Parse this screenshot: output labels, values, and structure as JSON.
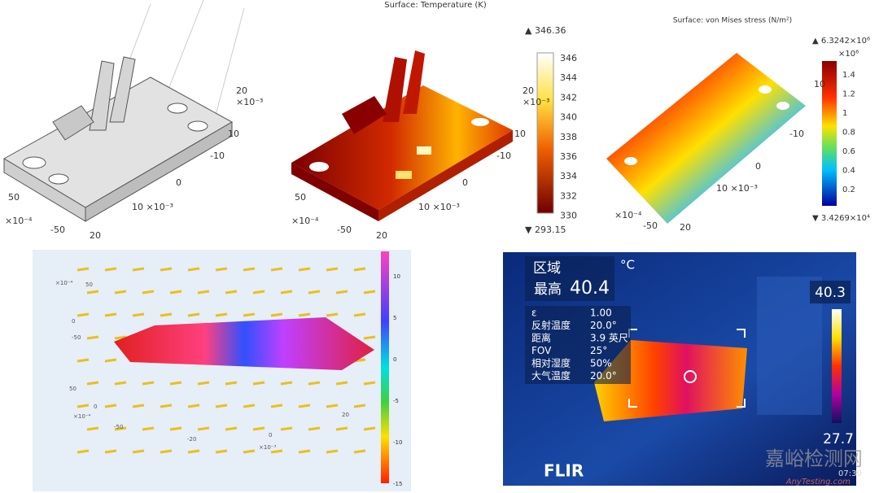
{
  "mesh_panel": {
    "axis_labels": [
      "20",
      "×10⁻³",
      "10",
      "-10",
      "0",
      "50",
      "×10⁻⁴",
      "10 ×10⁻³",
      "-50",
      "20"
    ]
  },
  "temperature_panel": {
    "title": "Surface: Temperature (K)",
    "max_label": "▲ 346.36",
    "min_label": "▼ 293.15",
    "colorbar_ticks": [
      "346",
      "344",
      "342",
      "340",
      "338",
      "336",
      "334",
      "332",
      "330"
    ],
    "axis_labels": [
      "20",
      "×10⁻³",
      "10",
      "-10",
      "0",
      "50",
      "×10⁻⁴",
      "10 ×10⁻³",
      "-50",
      "20"
    ]
  },
  "stress_panel": {
    "title": "Surface: von Mises stress (N/m²)",
    "max_label": "▲ 6.3242×10⁶",
    "exponent": "×10⁶",
    "min_label": "▼ 3.4269×10⁴",
    "colorbar_ticks": [
      "1.4",
      "1.2",
      "1",
      "0.8",
      "0.6",
      "0.4",
      "0.2"
    ],
    "axis_labels": [
      "10",
      "-10",
      "0",
      "10 ×10⁻³",
      "×10⁻⁴",
      "-50",
      "20"
    ]
  },
  "field_panel": {
    "colorbar_ticks": [
      "10",
      "5",
      "0",
      "-5",
      "-10",
      "-15"
    ],
    "axis_labels": [
      "×10⁻⁴",
      "50",
      "0",
      "-50",
      "50",
      "0",
      "×10⁻⁴",
      "-50",
      "-20",
      "0",
      "20",
      "×10⁻³"
    ]
  },
  "thermal_panel": {
    "region": "区域",
    "unit": "°C",
    "max_word": "最高",
    "max_value": "40.4",
    "params": [
      [
        "ε",
        "1.00"
      ],
      [
        "反射温度",
        "20.0°"
      ],
      [
        "距离",
        "3.9 英尺"
      ],
      [
        "FOV",
        "25°"
      ],
      [
        "相对湿度",
        "50%"
      ],
      [
        "大气温度",
        "20.0°"
      ]
    ],
    "scale_max": "40.3",
    "scale_min": "27.7",
    "brand": "FLIR",
    "time": "07:30"
  },
  "watermark": {
    "name": "嘉峪检测网",
    "site": "AnyTesting.com"
  }
}
